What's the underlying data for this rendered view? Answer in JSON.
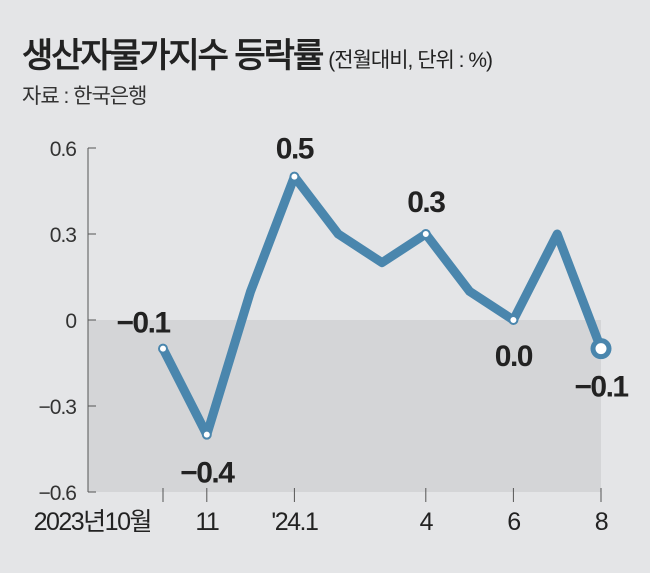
{
  "chart_data": {
    "type": "line",
    "title": "생산자물가지수 등락률",
    "subtitle": "(전월대비, 단위 : %)",
    "source": "자료 : 한국은행",
    "x": [
      "2023-10",
      "2023-11",
      "2023-12",
      "2024-01",
      "2024-02",
      "2024-03",
      "2024-04",
      "2024-05",
      "2024-06",
      "2024-07",
      "2024-08"
    ],
    "values": [
      -0.1,
      -0.4,
      0.1,
      0.5,
      0.3,
      0.2,
      0.3,
      0.1,
      0.0,
      0.3,
      -0.1
    ],
    "data_labels": [
      {
        "index": 0,
        "text": "−0.1"
      },
      {
        "index": 1,
        "text": "−0.4"
      },
      {
        "index": 3,
        "text": "0.5"
      },
      {
        "index": 6,
        "text": "0.3"
      },
      {
        "index": 8,
        "text": "0.0"
      },
      {
        "index": 10,
        "text": "−0.1"
      }
    ],
    "x_tick_labels": [
      {
        "index": 0,
        "text": "2023년10월"
      },
      {
        "index": 1,
        "text": "11"
      },
      {
        "index": 3,
        "text": "'24.1"
      },
      {
        "index": 6,
        "text": "4"
      },
      {
        "index": 8,
        "text": "6"
      },
      {
        "index": 10,
        "text": "8"
      }
    ],
    "y_ticks": [
      0.6,
      0.3,
      0,
      -0.3,
      -0.6
    ],
    "y_tick_labels": [
      "0.6",
      "0.3",
      "0",
      "−0.3",
      "−0.6"
    ],
    "ylim": [
      -0.6,
      0.6
    ],
    "line_color": "#4a86ad",
    "negative_shade_color": "#d4d5d7"
  }
}
